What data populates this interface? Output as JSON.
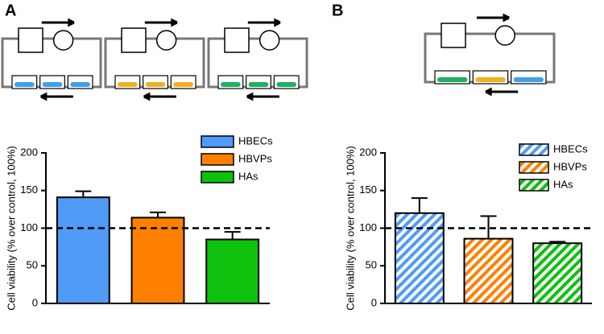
{
  "chart_data": [
    {
      "type": "bar",
      "panel": "A",
      "ylabel": "Cell viability (% over control, 100%)",
      "series": [
        {
          "name": "HBECs",
          "color": "#4f9bf5",
          "values": [
            141
          ],
          "errors": [
            8
          ]
        },
        {
          "name": "HBVPs",
          "color": "#ff8000",
          "values": [
            114
          ],
          "errors": [
            7
          ]
        },
        {
          "name": "HAs",
          "color": "#0dc10d",
          "values": [
            85
          ],
          "errors": [
            10
          ]
        }
      ],
      "ylim": [
        0,
        200
      ],
      "yticks": [
        0,
        50,
        100,
        150,
        200
      ],
      "reference_line": 100,
      "hatch": false
    },
    {
      "type": "bar",
      "panel": "B",
      "ylabel": "Cell viability (% over control, 100%)",
      "series": [
        {
          "name": "HBECs",
          "color": "#4f9bf5",
          "values": [
            120
          ],
          "errors": [
            20
          ]
        },
        {
          "name": "HBVPs",
          "color": "#ff8000",
          "values": [
            86
          ],
          "errors": [
            30
          ]
        },
        {
          "name": "HAs",
          "color": "#0dc10d",
          "values": [
            80
          ],
          "errors": [
            2
          ]
        }
      ],
      "ylim": [
        0,
        200
      ],
      "yticks": [
        0,
        50,
        100,
        150,
        200
      ],
      "reference_line": 100,
      "hatch": true
    }
  ]
}
